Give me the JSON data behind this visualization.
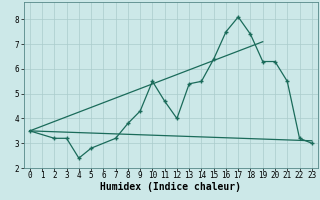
{
  "xlabel": "Humidex (Indice chaleur)",
  "bg_color": "#cce8e8",
  "grid_color": "#aacccc",
  "line_color": "#1a6b5a",
  "xlim": [
    -0.5,
    23.5
  ],
  "ylim": [
    2,
    8.7
  ],
  "yticks": [
    2,
    3,
    4,
    5,
    6,
    7,
    8
  ],
  "xticks": [
    0,
    1,
    2,
    3,
    4,
    5,
    6,
    7,
    8,
    9,
    10,
    11,
    12,
    13,
    14,
    15,
    16,
    17,
    18,
    19,
    20,
    21,
    22,
    23
  ],
  "line1_x": [
    0,
    2,
    3,
    4,
    5,
    7,
    8,
    9,
    10,
    11,
    12,
    13,
    14,
    15,
    16,
    17,
    18,
    19,
    20,
    21,
    22,
    23
  ],
  "line1_y": [
    3.5,
    3.2,
    3.2,
    2.4,
    2.8,
    3.2,
    3.8,
    4.3,
    5.5,
    4.7,
    4.0,
    5.4,
    5.5,
    6.4,
    7.5,
    8.1,
    7.4,
    6.3,
    6.3,
    5.5,
    3.2,
    3.0
  ],
  "line2_x": [
    0,
    23
  ],
  "line2_y": [
    3.5,
    3.1
  ],
  "line3_x": [
    0,
    19
  ],
  "line3_y": [
    3.5,
    7.1
  ],
  "xlabel_fontsize": 7,
  "tick_fontsize": 5.5,
  "linewidth": 0.9,
  "marker_size": 3.5
}
